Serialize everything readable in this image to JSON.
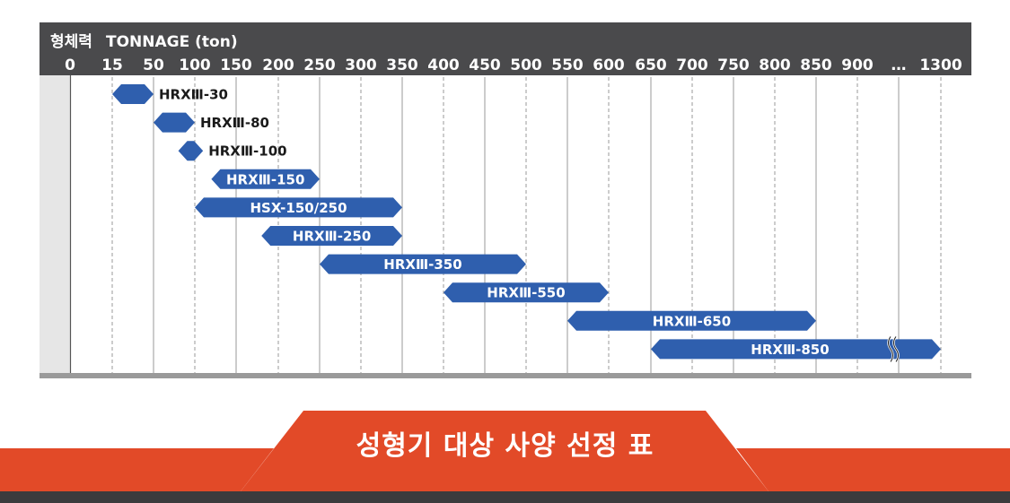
{
  "colors": {
    "header": "#4a4a4c",
    "bar": "#2f5fae",
    "banner_red": "#e24a28",
    "banner_dark": "#3b3b3d",
    "axis_gray": "#9a9a9a"
  },
  "header": {
    "korean_label": "형체력",
    "english_label": "TONNAGE (ton)"
  },
  "banner": {
    "title": "성형기 대상 사양 선정 표"
  },
  "chart_data": {
    "type": "bar",
    "orientation": "horizontal-range",
    "title": "",
    "xlabel": "TONNAGE (ton)",
    "ticks": [
      "0",
      "15",
      "50",
      "100",
      "150",
      "200",
      "250",
      "300",
      "350",
      "400",
      "450",
      "500",
      "550",
      "600",
      "650",
      "700",
      "750",
      "800",
      "850",
      "900",
      "…",
      "1300"
    ],
    "series": [
      {
        "name": "HRXⅢ-30",
        "start": "15",
        "end": "50"
      },
      {
        "name": "HRXⅢ-80",
        "start": "50",
        "end": "100"
      },
      {
        "name": "HRXⅢ-100",
        "start": "80",
        "end": "110"
      },
      {
        "name": "HRXⅢ-150",
        "start": "120",
        "end": "250"
      },
      {
        "name": "HSX-150/250",
        "start": "100",
        "end": "350"
      },
      {
        "name": "HRXⅢ-250",
        "start": "180",
        "end": "350"
      },
      {
        "name": "HRXⅢ-350",
        "start": "250",
        "end": "500"
      },
      {
        "name": "HRXⅢ-550",
        "start": "400",
        "end": "600"
      },
      {
        "name": "HRXⅢ-650",
        "start": "550",
        "end": "850"
      },
      {
        "name": "HRXⅢ-850",
        "start": "650",
        "end": "1300"
      }
    ]
  }
}
